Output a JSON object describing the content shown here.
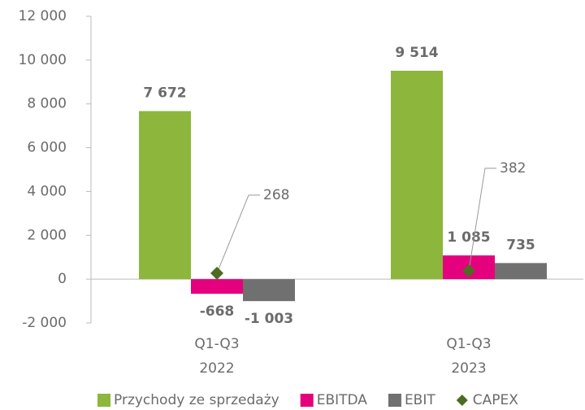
{
  "chart_data": {
    "type": "bar",
    "categories": [
      [
        "Q1-Q3",
        "2022"
      ],
      [
        "Q1-Q3",
        "2023"
      ]
    ],
    "series": [
      {
        "name": "Przychody ze sprzedaży",
        "color": "#8db63c",
        "values": [
          7672,
          9514
        ],
        "value_labels": [
          "7 672",
          "9 514"
        ]
      },
      {
        "name": "EBITDA",
        "color": "#e5007d",
        "values": [
          -668,
          1085
        ],
        "value_labels": [
          "-668",
          "1 085"
        ]
      },
      {
        "name": "EBIT",
        "color": "#707070",
        "values": [
          -1003,
          735
        ],
        "value_labels": [
          "-1 003",
          "735"
        ]
      },
      {
        "name": "CAPEX",
        "color": "#4d6b21",
        "marker": "diamond",
        "values": [
          268,
          382
        ]
      }
    ],
    "ylim": [
      -2000,
      12000
    ],
    "yticks": [
      {
        "value": -2000,
        "label": "-2 000"
      },
      0,
      {
        "value": 2000,
        "label": "2 000"
      },
      {
        "value": 4000,
        "label": "4 000"
      },
      {
        "value": 6000,
        "label": "6 000"
      },
      {
        "value": 8000,
        "label": "8 000"
      },
      {
        "value": 10000,
        "label": "10 000"
      },
      {
        "value": 12000,
        "label": "12 000"
      }
    ],
    "grid": false,
    "legend": "bottom"
  }
}
